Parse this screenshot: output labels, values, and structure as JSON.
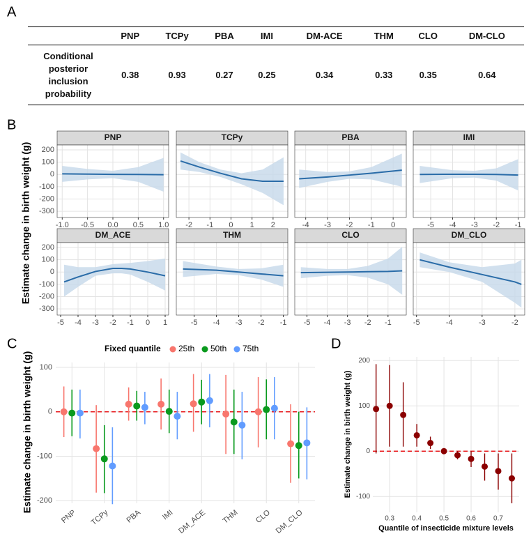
{
  "table": {
    "panel_label": "A",
    "columns": [
      "PNP",
      "TCPy",
      "PBA",
      "IMI",
      "DM-ACE",
      "THM",
      "CLO",
      "DM-CLO"
    ],
    "row_label": "Conditional posterior inclusion probability",
    "values": [
      0.38,
      0.93,
      0.27,
      0.25,
      0.34,
      0.33,
      0.35,
      0.64
    ]
  },
  "chart_data": [
    {
      "type": "ribbon",
      "panel_label": "B",
      "y_label": "Estimate change in birth weight (g)",
      "ylim": [
        -350,
        240
      ],
      "yticks": [
        -300,
        -200,
        -100,
        0,
        100,
        200
      ],
      "color": "#2a6ca8",
      "band_color": "#c6d8ea",
      "grid": true,
      "facets": [
        {
          "title": "PNP",
          "xlim": [
            -1.1,
            1.1
          ],
          "xticks": [
            {
              "value": -1,
              "label": "-1.0"
            },
            -0.5,
            {
              "value": 0,
              "label": "0.0"
            },
            0.5,
            {
              "value": 1,
              "label": "1.0"
            }
          ],
          "x": [
            -1,
            -0.5,
            0,
            0.5,
            1
          ],
          "values": [
            5,
            3,
            1,
            0,
            -2
          ],
          "lower": [
            -60,
            -40,
            -30,
            -60,
            -140
          ],
          "upper": [
            70,
            45,
            30,
            60,
            135
          ]
        },
        {
          "title": "TCPy",
          "xlim": [
            -2.6,
            2.7
          ],
          "xticks": [
            -2,
            -1,
            0,
            1,
            2
          ],
          "x": [
            -2.4,
            -1.5,
            -0.5,
            0.5,
            1.5,
            2.5
          ],
          "values": [
            110,
            60,
            10,
            -35,
            -55,
            -55
          ],
          "lower": [
            40,
            20,
            -20,
            -80,
            -150,
            -250
          ],
          "upper": [
            180,
            100,
            40,
            10,
            40,
            140
          ]
        },
        {
          "title": "PBA",
          "xlim": [
            -4.5,
            0.6
          ],
          "xticks": [
            -4,
            -3,
            -2,
            -1,
            0
          ],
          "x": [
            -4.3,
            -3,
            -2,
            -1,
            0.4
          ],
          "values": [
            -35,
            -20,
            -5,
            10,
            35
          ],
          "lower": [
            -110,
            -60,
            -35,
            -40,
            -100
          ],
          "upper": [
            40,
            20,
            25,
            60,
            170
          ]
        },
        {
          "title": "IMI",
          "xlim": [
            -5.8,
            -0.7
          ],
          "xticks": [
            -5,
            -4,
            -3,
            -2,
            -1
          ],
          "x": [
            -5.5,
            -4,
            -3,
            -2,
            -1
          ],
          "values": [
            0,
            2,
            2,
            0,
            -5
          ],
          "lower": [
            -70,
            -30,
            -25,
            -50,
            -130
          ],
          "upper": [
            70,
            35,
            30,
            50,
            125
          ]
        },
        {
          "title": "DM_ACE",
          "xlim": [
            -5.2,
            1.2
          ],
          "xticks": [
            -5,
            -4,
            -3,
            -2,
            -1,
            0,
            1
          ],
          "x": [
            -4.8,
            -4,
            -3,
            -2,
            -1.5,
            -1,
            0,
            1
          ],
          "values": [
            -80,
            -40,
            5,
            30,
            30,
            25,
            0,
            -30
          ],
          "lower": [
            -200,
            -120,
            -30,
            -10,
            -10,
            -20,
            -80,
            -150
          ],
          "upper": [
            60,
            40,
            40,
            65,
            70,
            75,
            90,
            110
          ]
        },
        {
          "title": "THM",
          "xlim": [
            -5.8,
            -0.8
          ],
          "xticks": [
            -5,
            -4,
            -3,
            -2,
            -1
          ],
          "x": [
            -5.5,
            -4,
            -3,
            -2,
            -1
          ],
          "values": [
            25,
            15,
            0,
            -15,
            -30
          ],
          "lower": [
            -40,
            -15,
            -25,
            -60,
            -120
          ],
          "upper": [
            90,
            45,
            25,
            30,
            60
          ]
        },
        {
          "title": "CLO",
          "xlim": [
            -5.6,
            -0.1
          ],
          "xticks": [
            -5,
            -4,
            -3,
            -2,
            -1
          ],
          "x": [
            -5.3,
            -4,
            -3,
            -2,
            -1,
            -0.3
          ],
          "values": [
            -5,
            -2,
            0,
            3,
            5,
            10
          ],
          "lower": [
            -50,
            -30,
            -25,
            -45,
            -100,
            -185
          ],
          "upper": [
            40,
            25,
            25,
            50,
            110,
            205
          ]
        },
        {
          "title": "DM_CLO",
          "xlim": [
            -5.1,
            -1.7
          ],
          "xticks": [
            -5,
            -4,
            -3,
            -2
          ],
          "x": [
            -4.9,
            -4,
            -3,
            -2,
            -1.8
          ],
          "values": [
            100,
            40,
            -20,
            -80,
            -100
          ],
          "lower": [
            40,
            0,
            -80,
            -250,
            -290
          ],
          "upper": [
            160,
            80,
            40,
            70,
            100
          ]
        }
      ]
    },
    {
      "type": "dodge",
      "panel_label": "C",
      "legend_title": "Fixed quantile",
      "legend": "top",
      "y_label": "Estimate change in birth weight (g)",
      "categories": [
        "PNP",
        "TCPy",
        "PBA",
        "IMI",
        "DM_ACE",
        "THM",
        "CLO",
        "DM_CLO"
      ],
      "ylim": [
        -206,
        111
      ],
      "yticks": [
        -200,
        -100,
        0,
        100
      ],
      "grid": true,
      "reference_line": 0,
      "reference_color": "#e8191c",
      "series": [
        {
          "name": "25th",
          "color": "#f8766d",
          "values": [
            0,
            -83,
            17,
            17,
            18,
            -5,
            0,
            -72
          ],
          "lower": [
            -57,
            -182,
            -20,
            -40,
            -45,
            -95,
            -80,
            -160
          ],
          "upper": [
            57,
            15,
            55,
            75,
            85,
            83,
            78,
            17
          ]
        },
        {
          "name": "50th",
          "color": "#0a9a1e",
          "values": [
            -3,
            -106,
            13,
            1,
            22,
            -23,
            5,
            -76
          ],
          "lower": [
            -55,
            -183,
            -20,
            -48,
            -28,
            -95,
            -62,
            -150
          ],
          "upper": [
            50,
            -30,
            47,
            50,
            72,
            50,
            73,
            0
          ]
        },
        {
          "name": "75th",
          "color": "#619cff",
          "values": [
            -3,
            -122,
            10,
            -10,
            25,
            -30,
            8,
            -70
          ],
          "lower": [
            -60,
            -208,
            -28,
            -62,
            -35,
            -107,
            -62,
            -152
          ],
          "upper": [
            50,
            -35,
            45,
            45,
            85,
            45,
            78,
            10
          ]
        }
      ]
    },
    {
      "type": "pointrange",
      "panel_label": "D",
      "x_label": "Quantile of insecticide mixture levels",
      "y_label": "Estimate change in birth weight (g)",
      "xlim": [
        0.238,
        0.777
      ],
      "xticks": [
        0.3,
        0.4,
        0.5,
        0.6,
        0.7
      ],
      "ylim": [
        -135,
        208
      ],
      "yticks": [
        -100,
        0,
        100,
        200
      ],
      "grid": true,
      "color": "#8b0000",
      "reference_line": 0,
      "reference_color": "#e8191c",
      "x": [
        0.25,
        0.3,
        0.35,
        0.4,
        0.45,
        0.5,
        0.55,
        0.6,
        0.65,
        0.7,
        0.75
      ],
      "values": [
        93,
        100,
        80,
        35,
        18,
        0,
        -9,
        -17,
        -34,
        -44,
        -60
      ],
      "lower": [
        -5,
        10,
        10,
        10,
        5,
        -5,
        -18,
        -35,
        -65,
        -85,
        -115
      ],
      "upper": [
        192,
        190,
        152,
        60,
        32,
        5,
        0,
        0,
        -5,
        -5,
        -5
      ]
    }
  ]
}
